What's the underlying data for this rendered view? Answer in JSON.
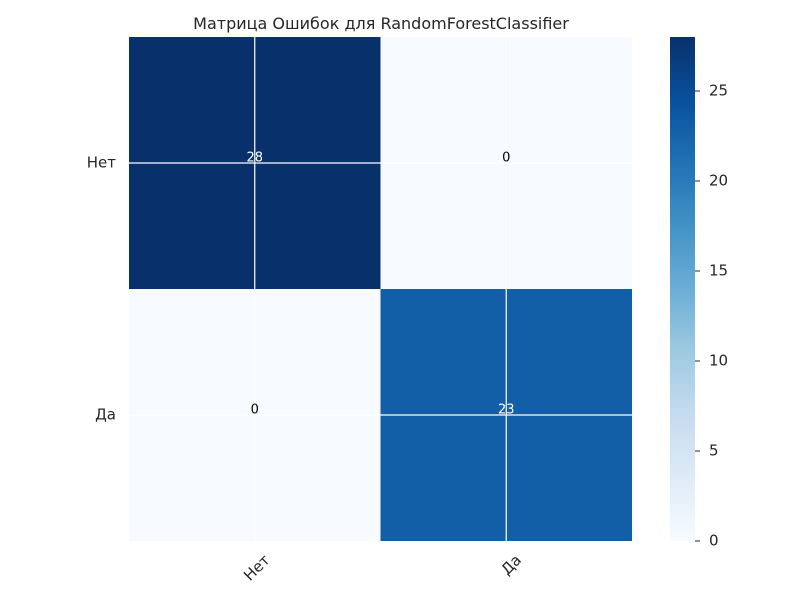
{
  "chart_data": {
    "type": "heatmap",
    "title": "Матрица Ошибок для RandomForestClassifier",
    "xlabel": "",
    "ylabel": "",
    "x_categories": [
      "Нет",
      "Да"
    ],
    "y_categories": [
      "Нет",
      "Да"
    ],
    "values": [
      [
        28,
        0
      ],
      [
        0,
        23
      ]
    ],
    "cell_labels": [
      [
        "28",
        "0"
      ],
      [
        "0",
        "23"
      ]
    ],
    "colormap": "Blues",
    "colorbar": {
      "min": 0,
      "max": 28,
      "ticks": [
        0,
        5,
        10,
        15,
        20,
        25
      ],
      "tick_labels": [
        "0",
        "5",
        "10",
        "15",
        "20",
        "25"
      ]
    },
    "grid": true,
    "grid_color": "#ffffff",
    "x_tick_rotation_deg": 45
  }
}
